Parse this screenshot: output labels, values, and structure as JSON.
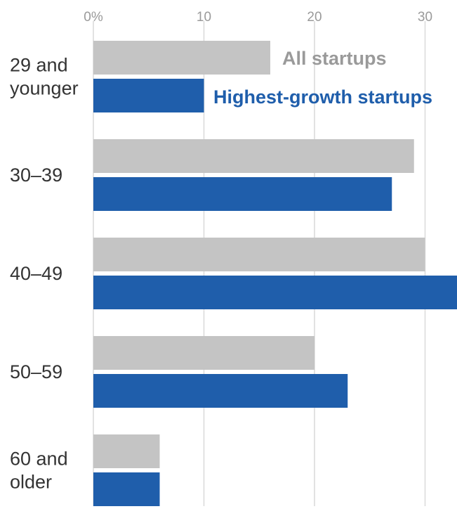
{
  "chart_data": {
    "type": "bar",
    "orientation": "horizontal",
    "title": "",
    "xlabel": "",
    "ylabel": "",
    "xlim": [
      0,
      33
    ],
    "x_ticks": [
      "0%",
      "10",
      "20",
      "30"
    ],
    "grid": true,
    "legend_position": "inline-top",
    "categories": [
      [
        "29 and",
        "younger"
      ],
      [
        "30–39"
      ],
      [
        "40–49"
      ],
      [
        "50–59"
      ],
      [
        "60 and",
        "older"
      ]
    ],
    "series": [
      {
        "name": "All startups",
        "color": "#c4c4c4",
        "values": [
          16,
          29,
          30,
          20,
          6
        ]
      },
      {
        "name": "Highest-growth startups",
        "color": "#1f5eab",
        "values": [
          10,
          27,
          33,
          23,
          6
        ]
      }
    ]
  }
}
